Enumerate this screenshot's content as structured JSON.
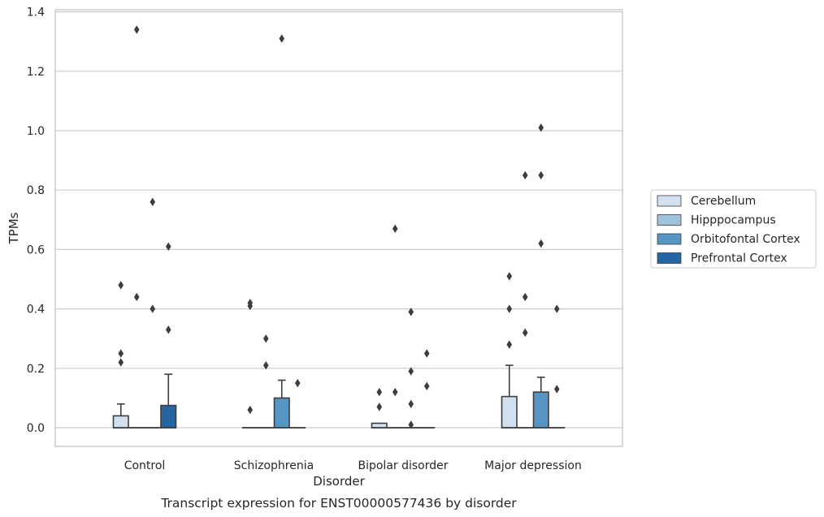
{
  "caption": "Transcript expression for ENST00000577436 by disorder",
  "chart_data": {
    "type": "box",
    "xlabel": "Disorder",
    "ylabel": "TPMs",
    "ylim": [
      -0.065,
      1.41
    ],
    "yticks": [
      0.0,
      0.2,
      0.4,
      0.6,
      0.8,
      1.0,
      1.2,
      1.4
    ],
    "ytick_labels": [
      "0.0",
      "0.2",
      "0.4",
      "0.6",
      "0.8",
      "1.0",
      "1.2",
      "1.4"
    ],
    "grid": "horizontal",
    "legend_position": "right",
    "categories": [
      "Control",
      "Schizophrenia",
      "Bipolar disorder",
      "Major depression"
    ],
    "series": [
      {
        "name": "Cerebellum",
        "color": "#d1e1f0",
        "boxes": [
          {
            "q1": 0.0,
            "median": 0.0,
            "q3": 0.04,
            "whisker_low": 0.0,
            "whisker_high": 0.08,
            "outliers": [
              0.48,
              0.25,
              0.22
            ]
          },
          {
            "q1": 0.0,
            "median": 0.0,
            "q3": 0.0,
            "whisker_low": 0.0,
            "whisker_high": 0.0,
            "outliers": [
              0.42,
              0.41,
              0.06
            ]
          },
          {
            "q1": 0.0,
            "median": 0.0,
            "q3": 0.015,
            "whisker_low": 0.0,
            "whisker_high": 0.015,
            "outliers": [
              0.12,
              0.07
            ]
          },
          {
            "q1": 0.0,
            "median": 0.0,
            "q3": 0.105,
            "whisker_low": 0.0,
            "whisker_high": 0.21,
            "outliers": [
              0.51,
              0.4,
              0.28
            ]
          }
        ]
      },
      {
        "name": "Hipppocampus",
        "color": "#9dc3dd",
        "boxes": [
          {
            "q1": 0.0,
            "median": 0.0,
            "q3": 0.0,
            "whisker_low": 0.0,
            "whisker_high": 0.0,
            "outliers": [
              1.34,
              0.44
            ]
          },
          {
            "q1": 0.0,
            "median": 0.0,
            "q3": 0.0,
            "whisker_low": 0.0,
            "whisker_high": 0.0,
            "outliers": [
              0.3,
              0.21
            ]
          },
          {
            "q1": 0.0,
            "median": 0.0,
            "q3": 0.0,
            "whisker_low": 0.0,
            "whisker_high": 0.0,
            "outliers": [
              0.67,
              0.12
            ]
          },
          {
            "q1": 0.0,
            "median": 0.0,
            "q3": 0.0,
            "whisker_low": 0.0,
            "whisker_high": 0.0,
            "outliers": [
              0.85,
              0.44,
              0.32
            ]
          }
        ]
      },
      {
        "name": "Orbitofontal Cortex",
        "color": "#5796c2",
        "boxes": [
          {
            "q1": 0.0,
            "median": 0.0,
            "q3": 0.0,
            "whisker_low": 0.0,
            "whisker_high": 0.0,
            "outliers": [
              0.76,
              0.4
            ]
          },
          {
            "q1": 0.0,
            "median": 0.0,
            "q3": 0.1,
            "whisker_low": 0.0,
            "whisker_high": 0.16,
            "outliers": [
              1.31
            ]
          },
          {
            "q1": 0.0,
            "median": 0.0,
            "q3": 0.0,
            "whisker_low": 0.0,
            "whisker_high": 0.0,
            "outliers": [
              0.39,
              0.19,
              0.08,
              0.01
            ]
          },
          {
            "q1": 0.0,
            "median": 0.0,
            "q3": 0.12,
            "whisker_low": 0.0,
            "whisker_high": 0.17,
            "outliers": [
              1.01,
              0.85,
              0.62
            ]
          }
        ]
      },
      {
        "name": "Prefrontal Cortex",
        "color": "#2565a4",
        "boxes": [
          {
            "q1": 0.0,
            "median": 0.0,
            "q3": 0.075,
            "whisker_low": 0.0,
            "whisker_high": 0.18,
            "outliers": [
              0.61,
              0.33
            ]
          },
          {
            "q1": 0.0,
            "median": 0.0,
            "q3": 0.0,
            "whisker_low": 0.0,
            "whisker_high": 0.0,
            "outliers": [
              0.15
            ]
          },
          {
            "q1": 0.0,
            "median": 0.0,
            "q3": 0.0,
            "whisker_low": 0.0,
            "whisker_high": 0.0,
            "outliers": [
              0.25,
              0.14
            ]
          },
          {
            "q1": 0.0,
            "median": 0.0,
            "q3": 0.0,
            "whisker_low": 0.0,
            "whisker_high": 0.0,
            "outliers": [
              0.4,
              0.13
            ]
          }
        ]
      }
    ]
  }
}
